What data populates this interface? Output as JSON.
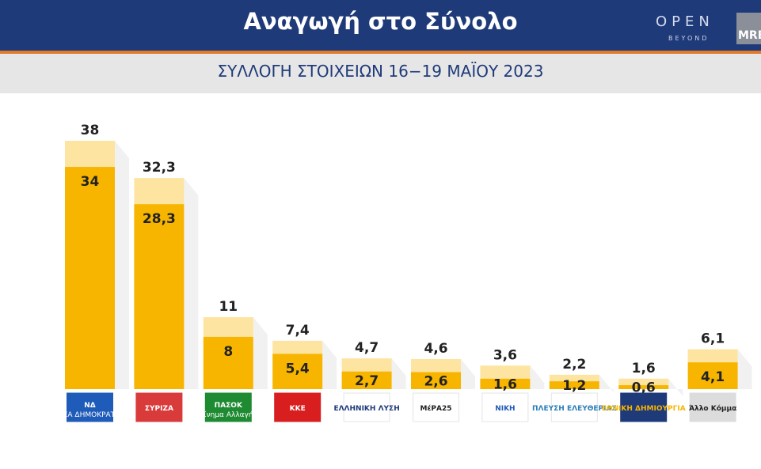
{
  "header": {
    "title": "Αναγωγή στο Σύνολο",
    "brand": "OPEN",
    "brand_sub": "BEYOND",
    "pollster": "MRB"
  },
  "subtitle": "ΣΥΛΛΟΓΗ ΣΤΟΙΧΕΙΩΝ 16−19 ΜΑΪΟΥ 2023",
  "colors": {
    "header_bg": "#1f3a79",
    "accent_line": "#e07a2c",
    "bar_main": "#f7b500",
    "bar_extra": "#fde4a1"
  },
  "chart_data": {
    "type": "bar",
    "categories": [
      "ΝΔ",
      "ΣΥΡΙΖΑ",
      "ΠΑΣΟΚ",
      "ΚΚΕ",
      "ΕΛΛΗΝΙΚΗ ΛΥΣΗ",
      "ΜέΡΑ25",
      "ΝΙΚΗ",
      "ΠΛΕΥΣΗ ΕΛΕΥΘΕΡΙΑΣ",
      "ΕΘΝΙΚΗ ΔΗΜΙΟΥΡΓΙΑ",
      "Άλλο Κόμμα"
    ],
    "series": [
      {
        "values": [
          34,
          28.3,
          8,
          5.4,
          2.7,
          2.6,
          1.6,
          1.2,
          0.6,
          4.1
        ]
      },
      {
        "values": [
          38,
          32.3,
          11,
          7.4,
          4.7,
          4.6,
          3.6,
          2.2,
          1.6,
          6.1
        ]
      }
    ],
    "labels": {
      "inner": [
        "34",
        "28,3",
        "8",
        "5,4",
        "2,7",
        "2,6",
        "1,6",
        "1,2",
        "0,6",
        "4,1"
      ],
      "total": [
        "38",
        "32,3",
        "11",
        "7,4",
        "4,7",
        "4,6",
        "3,6",
        "2,2",
        "1,6",
        "6,1"
      ]
    },
    "logos": [
      {
        "text": "ΝΔ",
        "sub": "ΝΕΑ ΔΗΜΟΚΡΑΤΙΑ",
        "bg": "#1f5bb8",
        "fg": "#ffffff"
      },
      {
        "text": "ΣΥΡΙΖΑ",
        "sub": "",
        "bg": "#d93a3a",
        "fg": "#ffffff"
      },
      {
        "text": "ΠΑΣΟΚ",
        "sub": "Κίνημα Αλλαγής",
        "bg": "#1e8a32",
        "fg": "#ffffff"
      },
      {
        "text": "ΚΚΕ",
        "sub": "",
        "bg": "#d81e1e",
        "fg": "#ffffff"
      },
      {
        "text": "ΕΛΛΗΝΙΚΗ ΛΥΣΗ",
        "sub": "",
        "bg": "#ffffff",
        "fg": "#1f3a79"
      },
      {
        "text": "ΜέΡΑ25",
        "sub": "",
        "bg": "#ffffff",
        "fg": "#222222"
      },
      {
        "text": "ΝΙΚΗ",
        "sub": "",
        "bg": "#ffffff",
        "fg": "#1f5bb8"
      },
      {
        "text": "ΠΛΕΥΣΗ ΕΛΕΥΘΕΡΙΑΣ",
        "sub": "",
        "bg": "#ffffff",
        "fg": "#2a7fb8"
      },
      {
        "text": "ΕΘΝΙΚΗ ΔΗΜΙΟΥΡΓΙΑ",
        "sub": "",
        "bg": "#1f3a79",
        "fg": "#f7b500"
      },
      {
        "text": "Άλλο Κόμμα",
        "sub": "",
        "bg": "#dcdcdc",
        "fg": "#222222"
      }
    ],
    "ylim": [
      0,
      38
    ],
    "grid": false,
    "legend": "none"
  }
}
